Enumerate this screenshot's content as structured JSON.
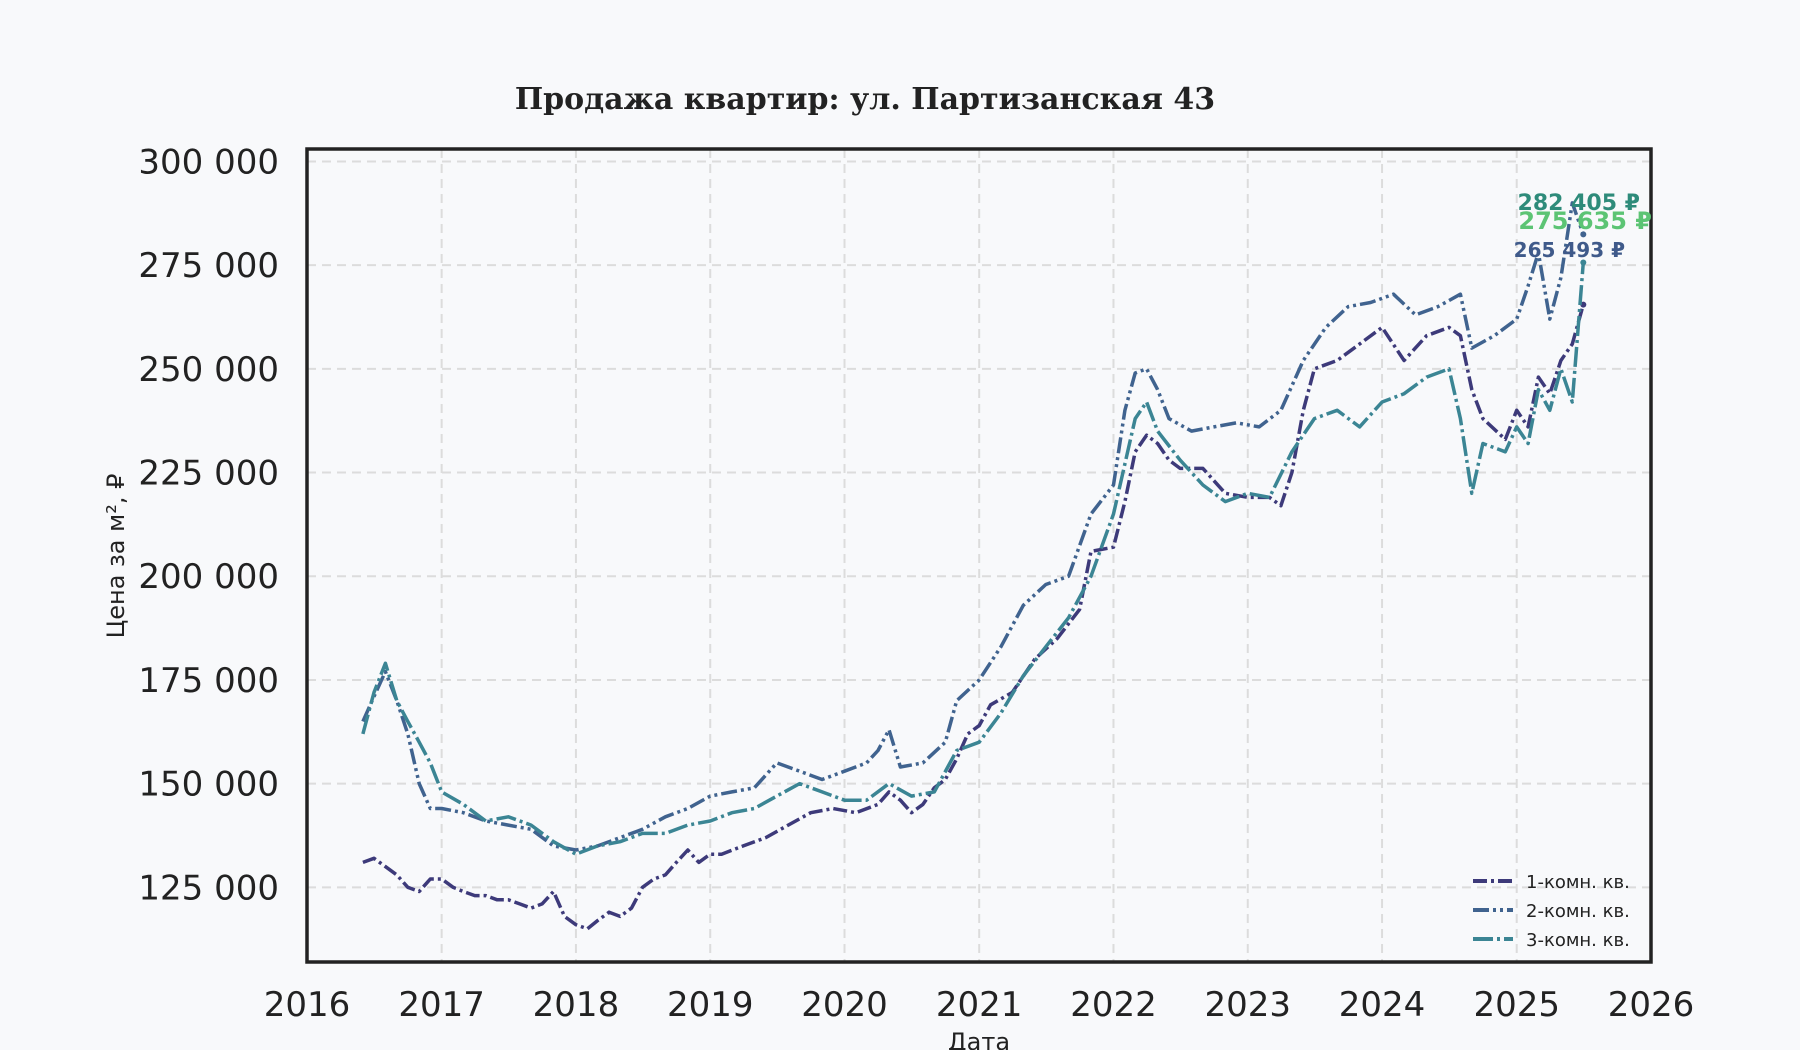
{
  "chart_data": {
    "type": "line",
    "title": "Продажа квартир: ул. Партизанская 43",
    "xlabel": "Дата",
    "ylabel": "Цена за м², ₽",
    "xlim": [
      "2016-01-01",
      "2026-01-01"
    ],
    "ylim": [
      107000,
      303000
    ],
    "x_ticks": [
      "2016",
      "2017",
      "2018",
      "2019",
      "2020",
      "2021",
      "2022",
      "2023",
      "2024",
      "2025",
      "2026"
    ],
    "y_ticks": [
      {
        "value": 125000,
        "label": "125 000"
      },
      {
        "value": 150000,
        "label": "150 000"
      },
      {
        "value": 175000,
        "label": "175 000"
      },
      {
        "value": 200000,
        "label": "200 000"
      },
      {
        "value": 225000,
        "label": "225 000"
      },
      {
        "value": 250000,
        "label": "250 000"
      },
      {
        "value": 275000,
        "label": "275 000"
      },
      {
        "value": 300000,
        "label": "300 000"
      }
    ],
    "grid": true,
    "legend_position": "bottom-right",
    "series": [
      {
        "name": "1-комн. кв.",
        "color": "#3d3a7a",
        "dash": "14,4,3,4",
        "end_label": "265 493 ₽",
        "end_label_color": "#3f5a8a",
        "points": [
          [
            "2016-06-01",
            131000
          ],
          [
            "2016-07-01",
            132000
          ],
          [
            "2016-08-01",
            130000
          ],
          [
            "2016-09-01",
            128000
          ],
          [
            "2016-10-01",
            125000
          ],
          [
            "2016-11-01",
            124000
          ],
          [
            "2016-12-01",
            127000
          ],
          [
            "2017-01-01",
            127000
          ],
          [
            "2017-02-01",
            125000
          ],
          [
            "2017-03-01",
            124000
          ],
          [
            "2017-04-01",
            123000
          ],
          [
            "2017-05-01",
            123000
          ],
          [
            "2017-06-01",
            122000
          ],
          [
            "2017-07-01",
            122000
          ],
          [
            "2017-08-01",
            121000
          ],
          [
            "2017-09-01",
            120000
          ],
          [
            "2017-10-01",
            121000
          ],
          [
            "2017-11-01",
            124000
          ],
          [
            "2017-12-01",
            118000
          ],
          [
            "2018-01-01",
            116000
          ],
          [
            "2018-02-01",
            115000
          ],
          [
            "2018-03-01",
            117000
          ],
          [
            "2018-04-01",
            119000
          ],
          [
            "2018-05-01",
            118000
          ],
          [
            "2018-06-01",
            120000
          ],
          [
            "2018-07-01",
            125000
          ],
          [
            "2018-08-01",
            127000
          ],
          [
            "2018-09-01",
            128000
          ],
          [
            "2018-10-01",
            131000
          ],
          [
            "2018-11-01",
            134000
          ],
          [
            "2018-12-01",
            131000
          ],
          [
            "2019-01-01",
            133000
          ],
          [
            "2019-02-01",
            133000
          ],
          [
            "2019-04-01",
            135000
          ],
          [
            "2019-06-01",
            137000
          ],
          [
            "2019-08-01",
            140000
          ],
          [
            "2019-10-01",
            143000
          ],
          [
            "2019-12-01",
            144000
          ],
          [
            "2020-02-01",
            143000
          ],
          [
            "2020-04-01",
            145000
          ],
          [
            "2020-05-01",
            148000
          ],
          [
            "2020-06-01",
            146000
          ],
          [
            "2020-07-01",
            143000
          ],
          [
            "2020-08-01",
            145000
          ],
          [
            "2020-09-01",
            149000
          ],
          [
            "2020-10-01",
            151000
          ],
          [
            "2020-11-01",
            156000
          ],
          [
            "2020-12-01",
            162000
          ],
          [
            "2021-01-01",
            164000
          ],
          [
            "2021-02-01",
            169000
          ],
          [
            "2021-04-01",
            172000
          ],
          [
            "2021-06-01",
            180000
          ],
          [
            "2021-08-01",
            185000
          ],
          [
            "2021-10-01",
            192000
          ],
          [
            "2021-11-01",
            206000
          ],
          [
            "2022-01-01",
            207000
          ],
          [
            "2022-02-01",
            218000
          ],
          [
            "2022-03-01",
            230000
          ],
          [
            "2022-04-01",
            234000
          ],
          [
            "2022-05-01",
            232000
          ],
          [
            "2022-06-01",
            228000
          ],
          [
            "2022-07-01",
            226000
          ],
          [
            "2022-09-01",
            226000
          ],
          [
            "2022-11-01",
            220000
          ],
          [
            "2023-01-01",
            219000
          ],
          [
            "2023-03-01",
            219000
          ],
          [
            "2023-04-01",
            217000
          ],
          [
            "2023-05-01",
            225000
          ],
          [
            "2023-06-01",
            240000
          ],
          [
            "2023-07-01",
            250000
          ],
          [
            "2023-09-01",
            252000
          ],
          [
            "2023-11-01",
            256000
          ],
          [
            "2024-01-01",
            260000
          ],
          [
            "2024-03-01",
            252000
          ],
          [
            "2024-05-01",
            258000
          ],
          [
            "2024-07-01",
            260000
          ],
          [
            "2024-08-01",
            258000
          ],
          [
            "2024-09-01",
            245000
          ],
          [
            "2024-10-01",
            238000
          ],
          [
            "2024-12-01",
            233000
          ],
          [
            "2025-01-01",
            240000
          ],
          [
            "2025-02-01",
            236000
          ],
          [
            "2025-03-01",
            248000
          ],
          [
            "2025-04-01",
            244000
          ],
          [
            "2025-05-01",
            252000
          ],
          [
            "2025-06-01",
            256000
          ],
          [
            "2025-07-01",
            265493
          ]
        ]
      },
      {
        "name": "2-комн. кв.",
        "color": "#40638f",
        "dash": "16,4,3,4,3,4",
        "end_label": "282 405 ₽",
        "end_label_color": "#2e8b7a",
        "points": [
          [
            "2016-06-01",
            165000
          ],
          [
            "2016-07-01",
            171000
          ],
          [
            "2016-08-01",
            177000
          ],
          [
            "2016-09-01",
            170000
          ],
          [
            "2016-10-01",
            162000
          ],
          [
            "2016-11-01",
            150000
          ],
          [
            "2016-12-01",
            144000
          ],
          [
            "2017-01-01",
            144000
          ],
          [
            "2017-03-01",
            143000
          ],
          [
            "2017-05-01",
            141000
          ],
          [
            "2017-07-01",
            140000
          ],
          [
            "2017-09-01",
            139000
          ],
          [
            "2017-11-01",
            135000
          ],
          [
            "2018-01-01",
            134000
          ],
          [
            "2018-03-01",
            135000
          ],
          [
            "2018-05-01",
            137000
          ],
          [
            "2018-07-01",
            139000
          ],
          [
            "2018-09-01",
            142000
          ],
          [
            "2018-11-01",
            144000
          ],
          [
            "2019-01-01",
            147000
          ],
          [
            "2019-03-01",
            148000
          ],
          [
            "2019-05-01",
            149000
          ],
          [
            "2019-07-01",
            155000
          ],
          [
            "2019-09-01",
            153000
          ],
          [
            "2019-11-01",
            151000
          ],
          [
            "2020-01-01",
            153000
          ],
          [
            "2020-03-01",
            155000
          ],
          [
            "2020-04-01",
            158000
          ],
          [
            "2020-05-01",
            163000
          ],
          [
            "2020-06-01",
            154000
          ],
          [
            "2020-08-01",
            155000
          ],
          [
            "2020-10-01",
            160000
          ],
          [
            "2020-11-01",
            170000
          ],
          [
            "2021-01-01",
            175000
          ],
          [
            "2021-03-01",
            183000
          ],
          [
            "2021-05-01",
            193000
          ],
          [
            "2021-07-01",
            198000
          ],
          [
            "2021-09-01",
            200000
          ],
          [
            "2021-11-01",
            215000
          ],
          [
            "2022-01-01",
            222000
          ],
          [
            "2022-02-01",
            240000
          ],
          [
            "2022-03-01",
            249000
          ],
          [
            "2022-04-01",
            250000
          ],
          [
            "2022-05-01",
            245000
          ],
          [
            "2022-06-01",
            238000
          ],
          [
            "2022-08-01",
            235000
          ],
          [
            "2022-10-01",
            236000
          ],
          [
            "2022-12-01",
            237000
          ],
          [
            "2023-02-01",
            236000
          ],
          [
            "2023-04-01",
            240000
          ],
          [
            "2023-06-01",
            252000
          ],
          [
            "2023-08-01",
            260000
          ],
          [
            "2023-10-01",
            265000
          ],
          [
            "2023-12-01",
            266000
          ],
          [
            "2024-02-01",
            268000
          ],
          [
            "2024-04-01",
            263000
          ],
          [
            "2024-06-01",
            265000
          ],
          [
            "2024-08-01",
            268000
          ],
          [
            "2024-09-01",
            255000
          ],
          [
            "2024-11-01",
            258000
          ],
          [
            "2025-01-01",
            262000
          ],
          [
            "2025-02-01",
            270000
          ],
          [
            "2025-03-01",
            278000
          ],
          [
            "2025-04-01",
            262000
          ],
          [
            "2025-05-01",
            272000
          ],
          [
            "2025-06-01",
            290000
          ],
          [
            "2025-07-01",
            282405
          ]
        ]
      },
      {
        "name": "3-комн. кв.",
        "color": "#3b8594",
        "dash": "20,4,3,4",
        "end_label": "275 635 ₽",
        "end_label_color": "#5cc474",
        "points": [
          [
            "2016-06-01",
            162000
          ],
          [
            "2016-07-01",
            172000
          ],
          [
            "2016-08-01",
            179000
          ],
          [
            "2016-09-01",
            170000
          ],
          [
            "2016-10-01",
            165000
          ],
          [
            "2016-11-01",
            160000
          ],
          [
            "2016-12-01",
            155000
          ],
          [
            "2017-01-01",
            148000
          ],
          [
            "2017-03-01",
            145000
          ],
          [
            "2017-05-01",
            141000
          ],
          [
            "2017-07-01",
            142000
          ],
          [
            "2017-09-01",
            140000
          ],
          [
            "2017-11-01",
            136000
          ],
          [
            "2018-01-01",
            133000
          ],
          [
            "2018-03-01",
            135000
          ],
          [
            "2018-05-01",
            136000
          ],
          [
            "2018-07-01",
            138000
          ],
          [
            "2018-09-01",
            138000
          ],
          [
            "2018-11-01",
            140000
          ],
          [
            "2019-01-01",
            141000
          ],
          [
            "2019-03-01",
            143000
          ],
          [
            "2019-05-01",
            144000
          ],
          [
            "2019-07-01",
            147000
          ],
          [
            "2019-09-01",
            150000
          ],
          [
            "2019-11-01",
            148000
          ],
          [
            "2020-01-01",
            146000
          ],
          [
            "2020-03-01",
            146000
          ],
          [
            "2020-05-01",
            150000
          ],
          [
            "2020-07-01",
            147000
          ],
          [
            "2020-09-01",
            148000
          ],
          [
            "2020-11-01",
            158000
          ],
          [
            "2021-01-01",
            160000
          ],
          [
            "2021-03-01",
            167000
          ],
          [
            "2021-05-01",
            176000
          ],
          [
            "2021-07-01",
            183000
          ],
          [
            "2021-09-01",
            190000
          ],
          [
            "2021-11-01",
            200000
          ],
          [
            "2022-01-01",
            215000
          ],
          [
            "2022-03-01",
            238000
          ],
          [
            "2022-04-01",
            242000
          ],
          [
            "2022-05-01",
            235000
          ],
          [
            "2022-07-01",
            228000
          ],
          [
            "2022-09-01",
            222000
          ],
          [
            "2022-11-01",
            218000
          ],
          [
            "2023-01-01",
            220000
          ],
          [
            "2023-03-01",
            219000
          ],
          [
            "2023-05-01",
            230000
          ],
          [
            "2023-07-01",
            238000
          ],
          [
            "2023-09-01",
            240000
          ],
          [
            "2023-11-01",
            236000
          ],
          [
            "2024-01-01",
            242000
          ],
          [
            "2024-03-01",
            244000
          ],
          [
            "2024-05-01",
            248000
          ],
          [
            "2024-07-01",
            250000
          ],
          [
            "2024-08-01",
            238000
          ],
          [
            "2024-09-01",
            220000
          ],
          [
            "2024-10-01",
            232000
          ],
          [
            "2024-12-01",
            230000
          ],
          [
            "2025-01-01",
            236000
          ],
          [
            "2025-02-01",
            232000
          ],
          [
            "2025-03-01",
            245000
          ],
          [
            "2025-04-01",
            240000
          ],
          [
            "2025-05-01",
            250000
          ],
          [
            "2025-06-01",
            242000
          ],
          [
            "2025-07-01",
            275635
          ]
        ]
      }
    ]
  }
}
